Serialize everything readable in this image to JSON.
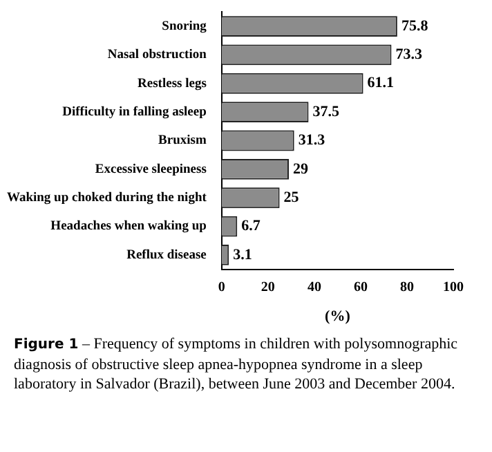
{
  "chart_data": {
    "type": "bar",
    "orientation": "horizontal",
    "categories": [
      "Snoring",
      "Nasal obstruction",
      "Restless legs",
      "Difficulty in falling asleep",
      "Bruxism",
      "Excessive sleepiness",
      "Waking up choked during the night",
      "Headaches when waking up",
      "Reflux disease"
    ],
    "values": [
      75.8,
      73.3,
      61.1,
      37.5,
      31.3,
      29,
      25,
      6.7,
      3.1
    ],
    "color": "#8c8c8c",
    "xlim": [
      0,
      100
    ],
    "xticks": [
      0,
      20,
      40,
      60,
      80,
      100
    ],
    "xlabel": "(%)",
    "grid": false,
    "legend": false,
    "data_labels": true,
    "annotations": [
      "Figure 1 – Frequency of symptoms in children with polysomnographic diagnosis of obstructive sleep apnea-hypopnea syndrome in a sleep laboratory in Salvador (Brazil), between June 2003 and December 2004."
    ]
  }
}
